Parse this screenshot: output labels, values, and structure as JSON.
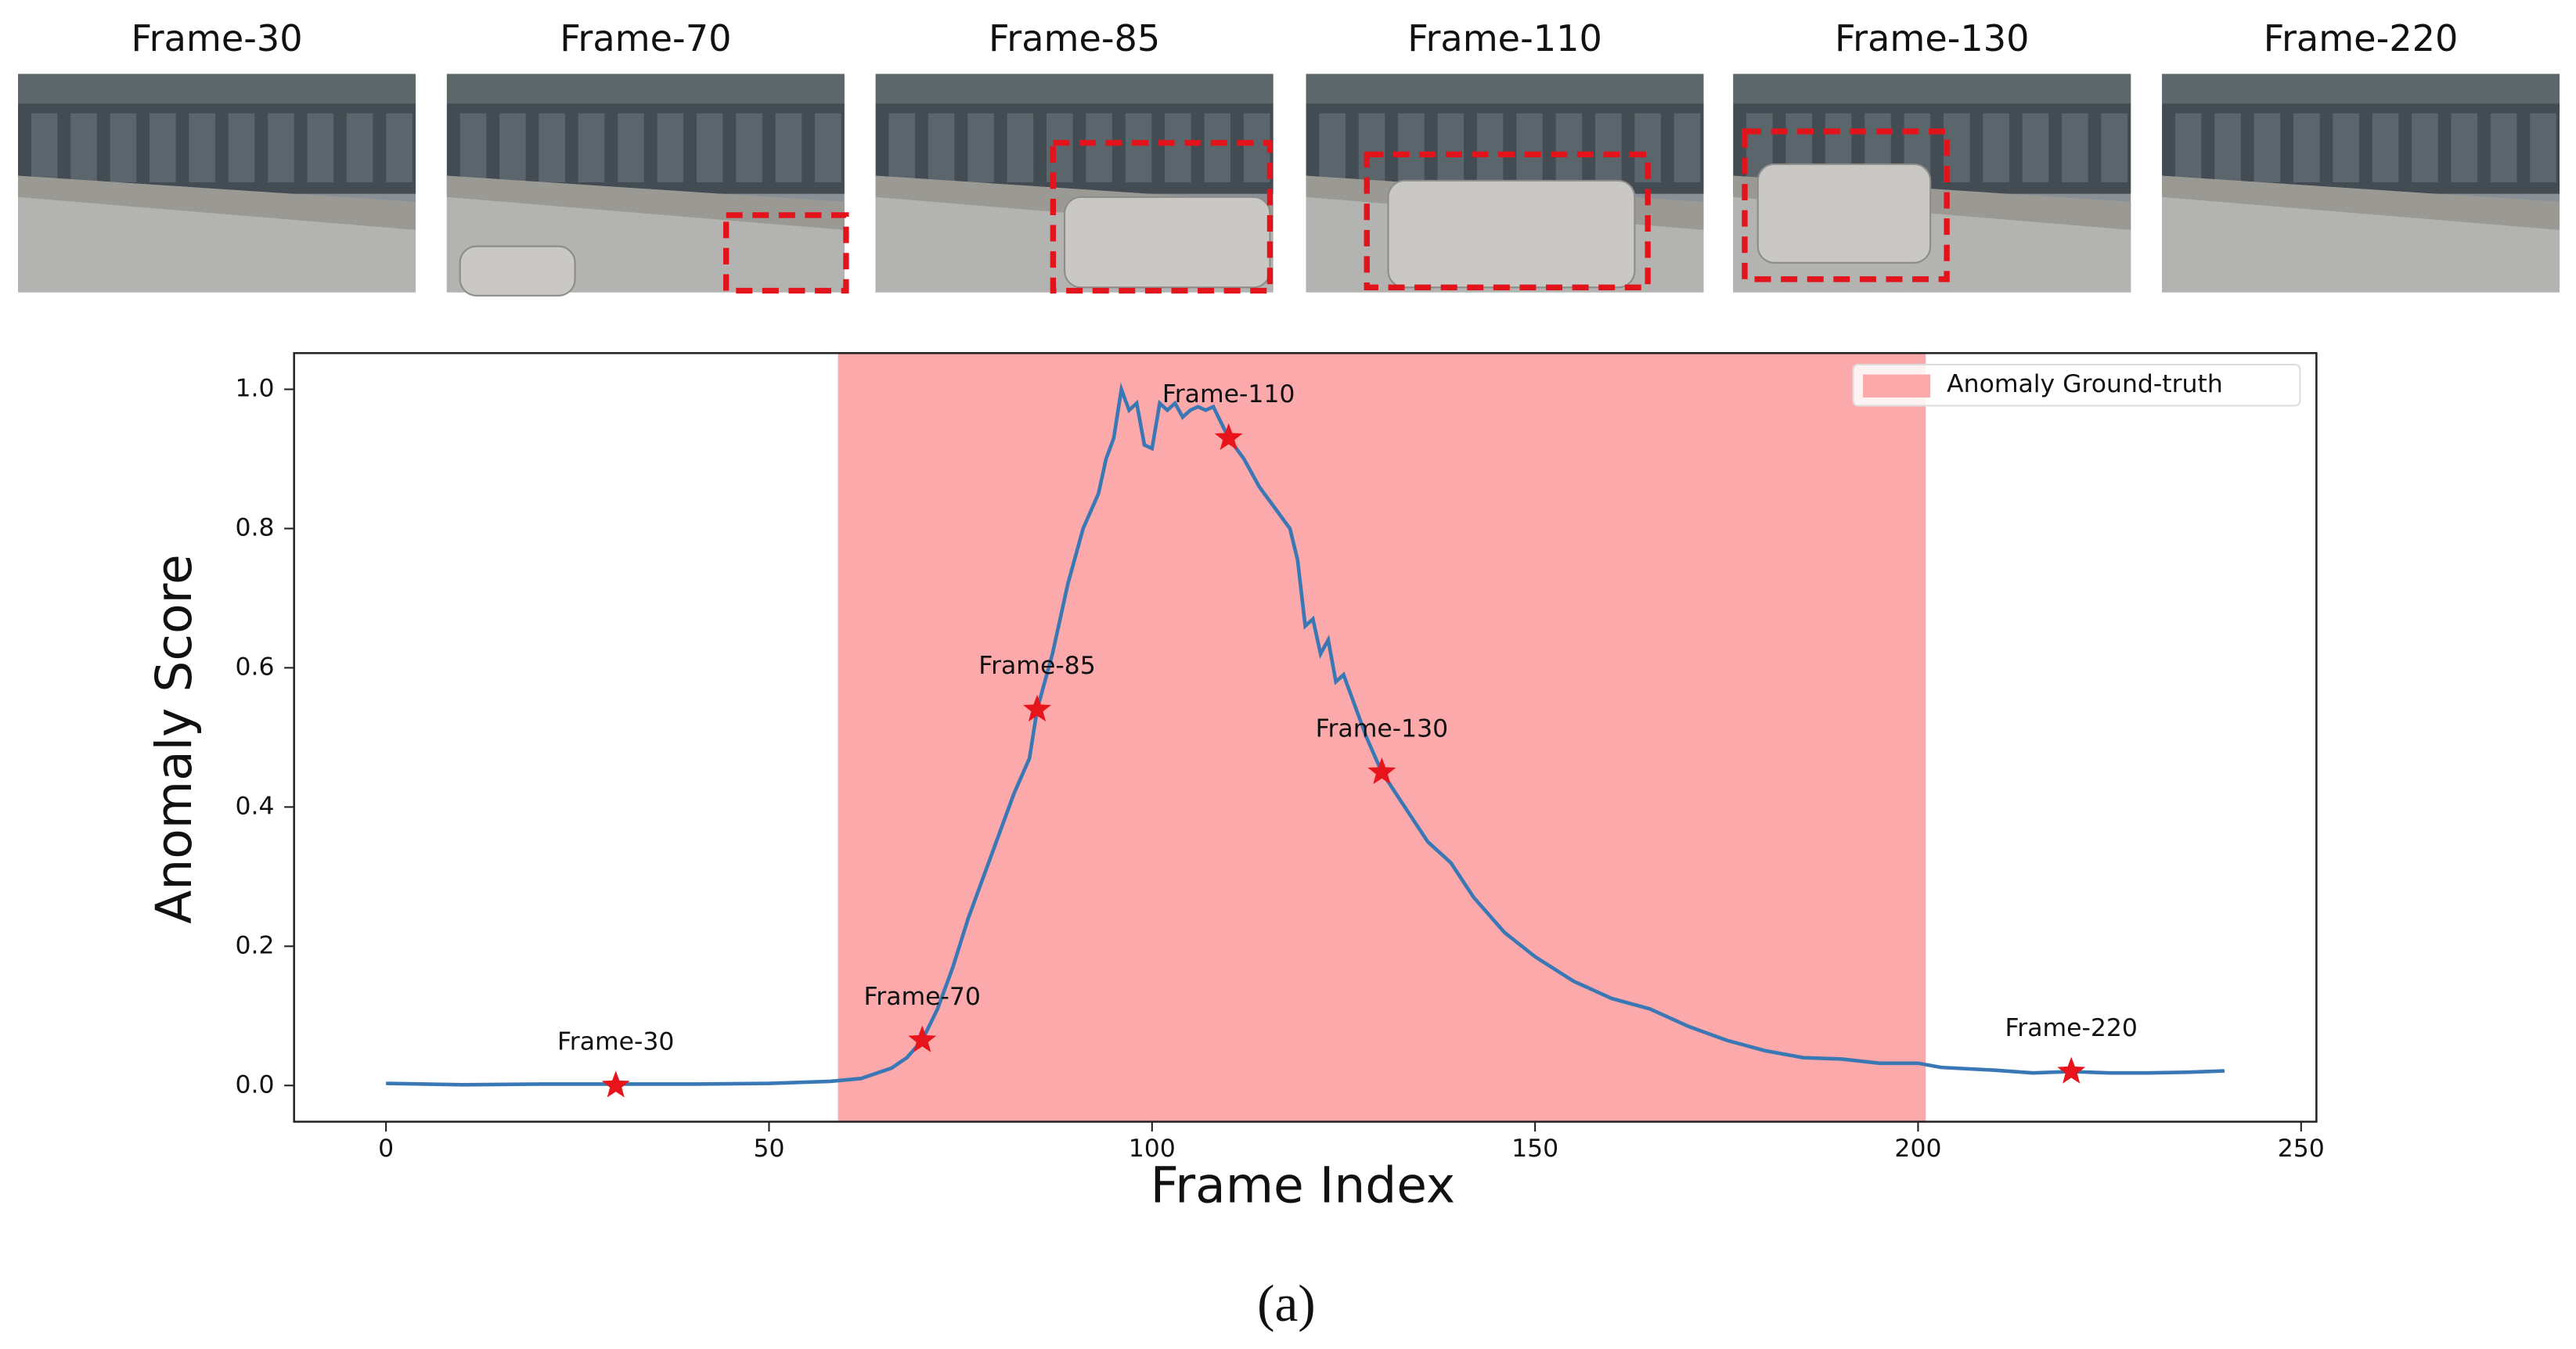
{
  "thumbnails": [
    "Frame-30",
    "Frame-70",
    "Frame-85",
    "Frame-110",
    "Frame-130",
    "Frame-220"
  ],
  "chart_data": {
    "type": "line",
    "xlabel": "Frame Index",
    "ylabel": "Anomaly Score",
    "xlim": [
      -12,
      252
    ],
    "ylim": [
      -0.052,
      1.052
    ],
    "xticks": [
      0,
      50,
      100,
      150,
      200,
      250
    ],
    "yticks": [
      {
        "value": 0,
        "label": "0.0"
      },
      0.2,
      0.4,
      0.6,
      0.8,
      {
        "value": 1,
        "label": "1.0"
      }
    ],
    "grid": false,
    "series": [
      {
        "color": "#3a78b5",
        "x": [
          0,
          10,
          20,
          30,
          40,
          50,
          58,
          62,
          66,
          68,
          70,
          72,
          74,
          76,
          78,
          80,
          82,
          84,
          85,
          87,
          89,
          91,
          93,
          94,
          95,
          96,
          97,
          98,
          99,
          100,
          101,
          102,
          103,
          104,
          105,
          106,
          107,
          108,
          110,
          112,
          114,
          116,
          118,
          119,
          120,
          121,
          122,
          123,
          124,
          125,
          126,
          128,
          130,
          133,
          136,
          139,
          142,
          146,
          150,
          155,
          160,
          165,
          170,
          175,
          180,
          185,
          190,
          195,
          200,
          203,
          210,
          215,
          220,
          225,
          230,
          235,
          240
        ],
        "values": [
          0.003,
          0.001,
          0.002,
          0.002,
          0.002,
          0.003,
          0.006,
          0.01,
          0.025,
          0.04,
          0.065,
          0.11,
          0.17,
          0.24,
          0.3,
          0.36,
          0.42,
          0.47,
          0.54,
          0.62,
          0.72,
          0.8,
          0.85,
          0.9,
          0.93,
          1.0,
          0.97,
          0.98,
          0.92,
          0.915,
          0.98,
          0.97,
          0.98,
          0.96,
          0.97,
          0.975,
          0.97,
          0.975,
          0.93,
          0.9,
          0.86,
          0.83,
          0.8,
          0.755,
          0.66,
          0.67,
          0.62,
          0.64,
          0.58,
          0.59,
          0.56,
          0.5,
          0.45,
          0.4,
          0.35,
          0.32,
          0.27,
          0.22,
          0.185,
          0.15,
          0.125,
          0.11,
          0.085,
          0.065,
          0.05,
          0.04,
          0.038,
          0.032,
          0.032,
          0.026,
          0.022,
          0.018,
          0.02,
          0.018,
          0.018,
          0.019,
          0.021
        ]
      }
    ],
    "markers": {
      "color": "#e8141c",
      "x": [
        30,
        70,
        85,
        110,
        130,
        220
      ],
      "values": [
        0.0,
        0.065,
        0.54,
        0.93,
        0.45,
        0.02
      ],
      "labels": [
        "Frame-30",
        "Frame-70",
        "Frame-85",
        "Frame-110",
        "Frame-130",
        "Frame-220"
      ]
    },
    "span": {
      "name": "Anomaly Ground-truth",
      "color": "#fba9aa",
      "x": [
        59,
        201
      ]
    },
    "legend": "upper right"
  },
  "caption": "(a)"
}
